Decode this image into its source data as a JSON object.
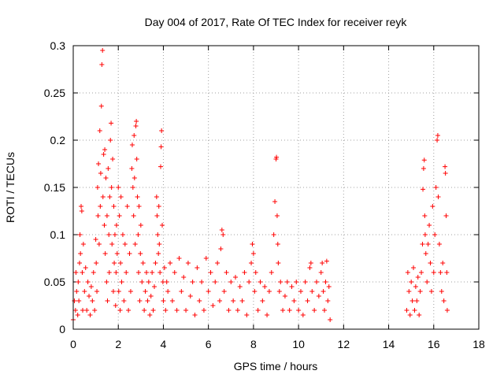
{
  "chart_data": {
    "type": "scatter",
    "title": "Day 004 of 2017, Rate Of TEC Index for receiver reyk",
    "xlabel": "GPS time / hours",
    "ylabel": "ROTI / TECUs",
    "xlim": [
      0,
      18
    ],
    "ylim": [
      0,
      0.3
    ],
    "xticks": [
      0,
      2,
      4,
      6,
      8,
      10,
      12,
      14,
      16,
      18
    ],
    "xtick_labels": [
      "0",
      "2",
      "4",
      "6",
      "8",
      "10",
      "12",
      "14",
      "16",
      "18"
    ],
    "yticks": [
      0,
      0.05,
      0.1,
      0.15,
      0.2,
      0.25,
      0.3
    ],
    "ytick_labels": [
      "0",
      "0.05",
      "0.1",
      "0.15",
      "0.2",
      "0.25",
      "0.3"
    ],
    "grid": true,
    "marker": "+",
    "color": "#ff0000",
    "series": [
      {
        "name": "ROTI",
        "points": [
          [
            0.0,
            0.01
          ],
          [
            0.05,
            0.03
          ],
          [
            0.1,
            0.02
          ],
          [
            0.12,
            0.06
          ],
          [
            0.15,
            0.04
          ],
          [
            0.2,
            0.015
          ],
          [
            0.22,
            0.05
          ],
          [
            0.25,
            0.03
          ],
          [
            0.28,
            0.07
          ],
          [
            0.3,
            0.1
          ],
          [
            0.32,
            0.08
          ],
          [
            0.35,
            0.13
          ],
          [
            0.38,
            0.125
          ],
          [
            0.4,
            0.06
          ],
          [
            0.42,
            0.02
          ],
          [
            0.45,
            0.09
          ],
          [
            0.5,
            0.04
          ],
          [
            0.55,
            0.065
          ],
          [
            0.6,
            0.02
          ],
          [
            0.65,
            0.05
          ],
          [
            0.7,
            0.035
          ],
          [
            0.75,
            0.015
          ],
          [
            0.8,
            0.045
          ],
          [
            0.85,
            0.03
          ],
          [
            0.9,
            0.06
          ],
          [
            0.95,
            0.02
          ],
          [
            1.0,
            0.095
          ],
          [
            1.02,
            0.07
          ],
          [
            1.05,
            0.04
          ],
          [
            1.08,
            0.15
          ],
          [
            1.1,
            0.12
          ],
          [
            1.12,
            0.175
          ],
          [
            1.15,
            0.09
          ],
          [
            1.18,
            0.21
          ],
          [
            1.2,
            0.13
          ],
          [
            1.22,
            0.165
          ],
          [
            1.25,
            0.236
          ],
          [
            1.27,
            0.28
          ],
          [
            1.3,
            0.295
          ],
          [
            1.32,
            0.14
          ],
          [
            1.35,
            0.185
          ],
          [
            1.38,
            0.11
          ],
          [
            1.4,
            0.19
          ],
          [
            1.42,
            0.08
          ],
          [
            1.45,
            0.16
          ],
          [
            1.48,
            0.05
          ],
          [
            1.5,
            0.12
          ],
          [
            1.52,
            0.03
          ],
          [
            1.55,
            0.17
          ],
          [
            1.58,
            0.1
          ],
          [
            1.6,
            0.06
          ],
          [
            1.62,
            0.14
          ],
          [
            1.65,
            0.2
          ],
          [
            1.68,
            0.218
          ],
          [
            1.7,
            0.15
          ],
          [
            1.72,
            0.09
          ],
          [
            1.75,
            0.18
          ],
          [
            1.78,
            0.04
          ],
          [
            1.8,
            0.13
          ],
          [
            1.82,
            0.07
          ],
          [
            1.85,
            0.1
          ],
          [
            1.88,
            0.025
          ],
          [
            1.9,
            0.06
          ],
          [
            1.92,
            0.11
          ],
          [
            1.95,
            0.08
          ],
          [
            2.0,
            0.15
          ],
          [
            2.02,
            0.04
          ],
          [
            2.05,
            0.12
          ],
          [
            2.08,
            0.02
          ],
          [
            2.1,
            0.07
          ],
          [
            2.12,
            0.14
          ],
          [
            2.15,
            0.05
          ],
          [
            2.2,
            0.1
          ],
          [
            2.25,
            0.03
          ],
          [
            2.3,
            0.09
          ],
          [
            2.35,
            0.06
          ],
          [
            2.4,
            0.13
          ],
          [
            2.45,
            0.02
          ],
          [
            2.5,
            0.08
          ],
          [
            2.55,
            0.04
          ],
          [
            2.6,
            0.17
          ],
          [
            2.62,
            0.195
          ],
          [
            2.65,
            0.15
          ],
          [
            2.68,
            0.12
          ],
          [
            2.7,
            0.205
          ],
          [
            2.72,
            0.16
          ],
          [
            2.75,
            0.09
          ],
          [
            2.78,
            0.215
          ],
          [
            2.8,
            0.22
          ],
          [
            2.82,
            0.18
          ],
          [
            2.85,
            0.14
          ],
          [
            2.88,
            0.1
          ],
          [
            2.9,
            0.06
          ],
          [
            2.92,
            0.13
          ],
          [
            2.95,
            0.03
          ],
          [
            2.98,
            0.08
          ],
          [
            3.0,
            0.11
          ],
          [
            3.05,
            0.05
          ],
          [
            3.1,
            0.07
          ],
          [
            3.15,
            0.02
          ],
          [
            3.2,
            0.04
          ],
          [
            3.25,
            0.06
          ],
          [
            3.3,
            0.03
          ],
          [
            3.35,
            0.05
          ],
          [
            3.4,
            0.015
          ],
          [
            3.45,
            0.035
          ],
          [
            3.5,
            0.06
          ],
          [
            3.55,
            0.02
          ],
          [
            3.6,
            0.045
          ],
          [
            3.65,
            0.07
          ],
          [
            3.7,
            0.14
          ],
          [
            3.72,
            0.12
          ],
          [
            3.75,
            0.1
          ],
          [
            3.78,
            0.08
          ],
          [
            3.8,
            0.13
          ],
          [
            3.82,
            0.09
          ],
          [
            3.85,
            0.06
          ],
          [
            3.88,
            0.172
          ],
          [
            3.9,
            0.193
          ],
          [
            3.92,
            0.21
          ],
          [
            3.95,
            0.11
          ],
          [
            3.98,
            0.05
          ],
          [
            4.0,
            0.03
          ],
          [
            4.05,
            0.065
          ],
          [
            4.1,
            0.02
          ],
          [
            4.15,
            0.05
          ],
          [
            4.2,
            0.04
          ],
          [
            4.3,
            0.07
          ],
          [
            4.4,
            0.03
          ],
          [
            4.5,
            0.06
          ],
          [
            4.6,
            0.02
          ],
          [
            4.7,
            0.075
          ],
          [
            4.8,
            0.04
          ],
          [
            4.9,
            0.055
          ],
          [
            5.0,
            0.02
          ],
          [
            5.1,
            0.07
          ],
          [
            5.2,
            0.035
          ],
          [
            5.3,
            0.05
          ],
          [
            5.4,
            0.015
          ],
          [
            5.5,
            0.065
          ],
          [
            5.6,
            0.03
          ],
          [
            5.7,
            0.05
          ],
          [
            5.8,
            0.02
          ],
          [
            5.9,
            0.075
          ],
          [
            6.0,
            0.04
          ],
          [
            6.1,
            0.06
          ],
          [
            6.2,
            0.025
          ],
          [
            6.3,
            0.05
          ],
          [
            6.4,
            0.07
          ],
          [
            6.5,
            0.03
          ],
          [
            6.55,
            0.085
          ],
          [
            6.6,
            0.105
          ],
          [
            6.65,
            0.1
          ],
          [
            6.7,
            0.04
          ],
          [
            6.8,
            0.06
          ],
          [
            6.9,
            0.02
          ],
          [
            7.0,
            0.05
          ],
          [
            7.1,
            0.03
          ],
          [
            7.2,
            0.055
          ],
          [
            7.3,
            0.02
          ],
          [
            7.4,
            0.045
          ],
          [
            7.5,
            0.03
          ],
          [
            7.6,
            0.06
          ],
          [
            7.7,
            0.015
          ],
          [
            7.8,
            0.05
          ],
          [
            7.9,
            0.07
          ],
          [
            7.95,
            0.09
          ],
          [
            8.0,
            0.08
          ],
          [
            8.05,
            0.04
          ],
          [
            8.1,
            0.06
          ],
          [
            8.2,
            0.02
          ],
          [
            8.3,
            0.05
          ],
          [
            8.4,
            0.03
          ],
          [
            8.5,
            0.045
          ],
          [
            8.6,
            0.015
          ],
          [
            8.7,
            0.04
          ],
          [
            8.8,
            0.06
          ],
          [
            8.9,
            0.1
          ],
          [
            8.95,
            0.135
          ],
          [
            9.0,
            0.18
          ],
          [
            9.02,
            0.182
          ],
          [
            9.05,
            0.12
          ],
          [
            9.08,
            0.09
          ],
          [
            9.1,
            0.07
          ],
          [
            9.15,
            0.04
          ],
          [
            9.2,
            0.05
          ],
          [
            9.3,
            0.02
          ],
          [
            9.4,
            0.035
          ],
          [
            9.5,
            0.05
          ],
          [
            9.6,
            0.02
          ],
          [
            9.7,
            0.045
          ],
          [
            9.8,
            0.03
          ],
          [
            9.9,
            0.05
          ],
          [
            10.0,
            0.02
          ],
          [
            10.1,
            0.04
          ],
          [
            10.2,
            0.015
          ],
          [
            10.3,
            0.05
          ],
          [
            10.4,
            0.03
          ],
          [
            10.5,
            0.065
          ],
          [
            10.55,
            0.07
          ],
          [
            10.6,
            0.04
          ],
          [
            10.7,
            0.02
          ],
          [
            10.8,
            0.05
          ],
          [
            10.9,
            0.035
          ],
          [
            11.0,
            0.06
          ],
          [
            11.05,
            0.07
          ],
          [
            11.1,
            0.04
          ],
          [
            11.15,
            0.02
          ],
          [
            11.2,
            0.05
          ],
          [
            11.25,
            0.072
          ],
          [
            11.3,
            0.03
          ],
          [
            11.35,
            0.045
          ],
          [
            11.4,
            0.01
          ],
          [
            14.8,
            0.02
          ],
          [
            14.85,
            0.06
          ],
          [
            14.9,
            0.04
          ],
          [
            14.95,
            0.015
          ],
          [
            15.0,
            0.05
          ],
          [
            15.05,
            0.03
          ],
          [
            15.1,
            0.065
          ],
          [
            15.15,
            0.02
          ],
          [
            15.2,
            0.045
          ],
          [
            15.25,
            0.03
          ],
          [
            15.3,
            0.055
          ],
          [
            15.35,
            0.015
          ],
          [
            15.4,
            0.04
          ],
          [
            15.45,
            0.06
          ],
          [
            15.5,
            0.09
          ],
          [
            15.52,
            0.148
          ],
          [
            15.55,
            0.17
          ],
          [
            15.58,
            0.179
          ],
          [
            15.6,
            0.12
          ],
          [
            15.62,
            0.1
          ],
          [
            15.65,
            0.08
          ],
          [
            15.7,
            0.05
          ],
          [
            15.75,
            0.09
          ],
          [
            15.8,
            0.11
          ],
          [
            15.85,
            0.07
          ],
          [
            15.9,
            0.04
          ],
          [
            15.95,
            0.13
          ],
          [
            16.0,
            0.06
          ],
          [
            16.05,
            0.1
          ],
          [
            16.1,
            0.15
          ],
          [
            16.15,
            0.2
          ],
          [
            16.18,
            0.205
          ],
          [
            16.2,
            0.14
          ],
          [
            16.25,
            0.09
          ],
          [
            16.3,
            0.06
          ],
          [
            16.35,
            0.04
          ],
          [
            16.4,
            0.07
          ],
          [
            16.45,
            0.03
          ],
          [
            16.5,
            0.172
          ],
          [
            16.52,
            0.165
          ],
          [
            16.55,
            0.12
          ],
          [
            16.58,
            0.06
          ],
          [
            16.6,
            0.02
          ]
        ]
      }
    ]
  }
}
